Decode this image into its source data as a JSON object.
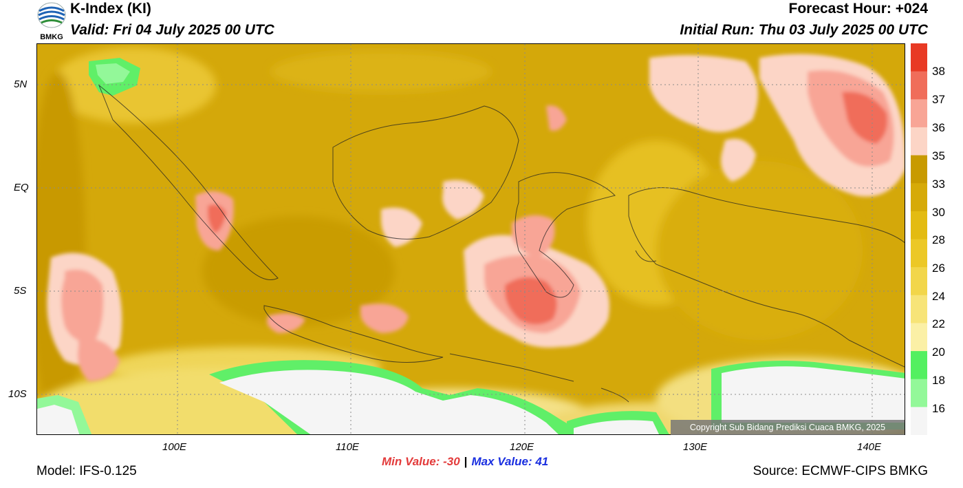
{
  "header": {
    "logo_text": "BMKG",
    "title": "K-Index (KI)",
    "valid": "Valid: Fri 04 July 2025 00 UTC",
    "forecast_hour": "Forecast Hour: +024",
    "initial_run": "Initial Run: Thu 03 July 2025 00 UTC"
  },
  "map": {
    "lat_labels": [
      "5N",
      "EQ",
      "5S",
      "10S"
    ],
    "lon_labels": [
      "100E",
      "110E",
      "120E",
      "130E",
      "140E"
    ],
    "copyright": "Copyright Sub Bidang Prediksi Cuaca BMKG, 2025"
  },
  "colorbar": {
    "labels": [
      "38",
      "37",
      "36",
      "35",
      "33",
      "30",
      "28",
      "26",
      "24",
      "22",
      "20",
      "18",
      "16"
    ],
    "colors": [
      "#e83a24",
      "#f06d5a",
      "#f8a596",
      "#fcd5c6",
      "#c89a00",
      "#d6aa08",
      "#e3bb12",
      "#ecc826",
      "#f2d64a",
      "#f7e478",
      "#fbf0a6",
      "#53f060",
      "#93f899",
      "#f5f5f5"
    ]
  },
  "stats": {
    "min": "Min Value: -30",
    "separator": "|",
    "max": "Max Value:  41"
  },
  "footer": {
    "model": "Model: IFS-0.125",
    "source": "Source: ECMWF-CIPS BMKG"
  }
}
